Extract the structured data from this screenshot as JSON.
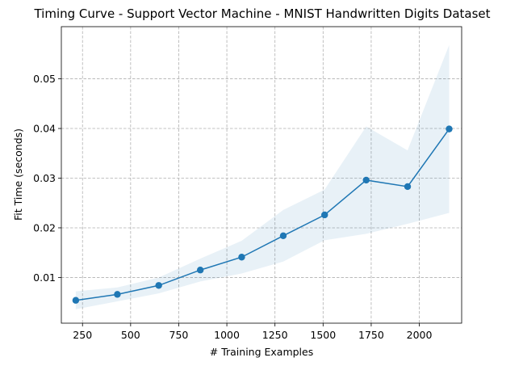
{
  "chart_data": {
    "type": "line",
    "title": "Timing Curve - Support Vector Machine - MNIST Handwritten Digits Dataset",
    "xlabel": "# Training Examples",
    "ylabel": "Fit Time (seconds)",
    "xlim": [
      140,
      2220
    ],
    "ylim": [
      0.0008,
      0.0605
    ],
    "xticks": [
      250,
      500,
      750,
      1000,
      1250,
      1500,
      1750,
      2000
    ],
    "yticks": [
      0.01,
      0.02,
      0.03,
      0.04,
      0.05
    ],
    "xtick_labels": [
      "250",
      "500",
      "750",
      "1000",
      "1250",
      "1500",
      "1750",
      "2000"
    ],
    "ytick_labels": [
      "0.01",
      "0.02",
      "0.03",
      "0.04",
      "0.05"
    ],
    "grid": true,
    "colors": {
      "line": "#1f77b4",
      "band": "#1f77b4"
    },
    "series": [
      {
        "x": [
          215,
          431,
          646,
          862,
          1077,
          1293,
          1508,
          1724,
          1939,
          2155
        ],
        "y": [
          0.0054,
          0.0066,
          0.0084,
          0.0115,
          0.0141,
          0.0184,
          0.0226,
          0.0296,
          0.0283,
          0.0399
        ],
        "y_lower": [
          0.0036,
          0.0052,
          0.0068,
          0.0092,
          0.0108,
          0.0132,
          0.0175,
          0.0188,
          0.0208,
          0.023
        ],
        "y_upper": [
          0.0072,
          0.008,
          0.01,
          0.0138,
          0.0174,
          0.0236,
          0.0277,
          0.0404,
          0.0356,
          0.0568
        ]
      }
    ]
  }
}
